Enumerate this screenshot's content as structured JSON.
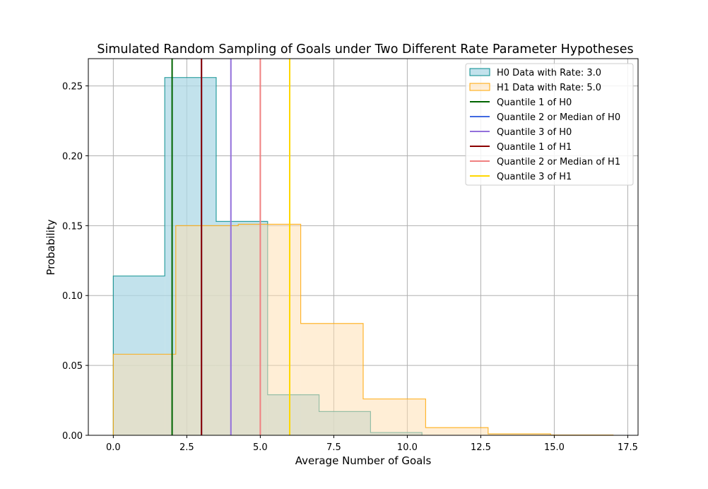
{
  "chart_data": {
    "type": "histogram",
    "title": "Simulated Random Sampling of Goals under Two Different Rate Parameter Hypotheses",
    "xlabel": "Average Number of Goals",
    "ylabel": "Probability",
    "xlim": [
      -0.85,
      17.85
    ],
    "ylim": [
      0,
      0.2695
    ],
    "grid": true,
    "legend_position": "top-right",
    "x_ticks": [
      0,
      2.5,
      5,
      7.5,
      10,
      12.5,
      15,
      17.5
    ],
    "x_tick_labels": [
      "0.0",
      "2.5",
      "5.0",
      "7.5",
      "10.0",
      "12.5",
      "15.0",
      "17.5"
    ],
    "y_ticks": [
      0,
      0.05,
      0.1,
      0.15,
      0.2,
      0.25
    ],
    "y_tick_labels": [
      "0.00",
      "0.05",
      "0.10",
      "0.15",
      "0.20",
      "0.25"
    ],
    "series": [
      {
        "name": "H0 Data with Rate: 3.0",
        "fill": "#add8e6",
        "edge": "#008b8b",
        "fill_opacity": 0.75,
        "bin_edges": [
          0,
          1.75,
          3.5,
          5.25,
          7.0,
          8.75,
          10.5
        ],
        "values": [
          0.114,
          0.256,
          0.153,
          0.029,
          0.017,
          0.002
        ]
      },
      {
        "name": "H1 Data with Rate: 5.0",
        "fill": "#ffdead",
        "edge": "#ffa500",
        "fill_opacity": 0.5,
        "bin_edges": [
          0,
          2.125,
          4.25,
          6.375,
          8.5,
          10.625,
          12.75,
          14.875,
          17.0
        ],
        "values": [
          0.058,
          0.15,
          0.151,
          0.08,
          0.026,
          0.0055,
          0.001,
          0.0002
        ]
      }
    ],
    "vlines": [
      {
        "name": "Quantile 1 of H0",
        "x": 2.0,
        "color": "#006400"
      },
      {
        "name": "Quantile 2 or Median of H0",
        "x": 3.0,
        "color": "#4169e1"
      },
      {
        "name": "Quantile 3 of H0",
        "x": 4.0,
        "color": "#9370db"
      },
      {
        "name": "Quantile 1 of H1",
        "x": 3.0,
        "color": "#8b0000"
      },
      {
        "name": "Quantile 2 or Median of H1",
        "x": 5.0,
        "color": "#f08080"
      },
      {
        "name": "Quantile 3 of H1",
        "x": 6.0,
        "color": "#ffd700"
      }
    ]
  }
}
